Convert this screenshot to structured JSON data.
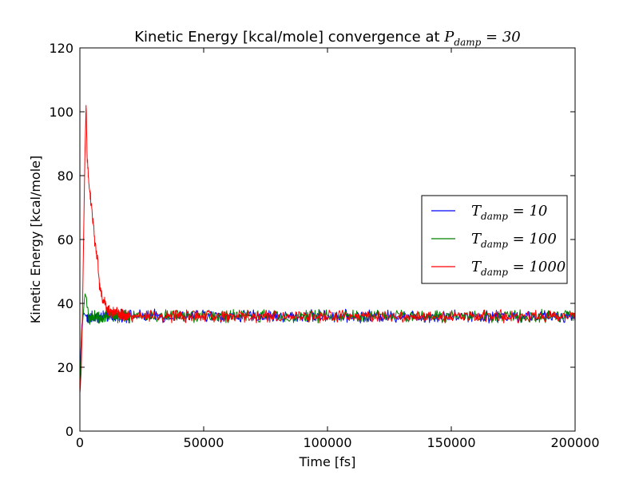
{
  "chart_data": {
    "type": "line",
    "title": "Kinetic Energy [kcal/mole] convergence at ",
    "title_math": {
      "base": "P",
      "sub": "damp",
      "rest": " = 30"
    },
    "xlabel": "Time [fs]",
    "ylabel": "Kinetic Energy [kcal/mole]",
    "xlim": [
      0,
      200000
    ],
    "ylim": [
      0,
      120
    ],
    "xticks": [
      0,
      50000,
      100000,
      150000,
      200000
    ],
    "yticks": [
      0,
      20,
      40,
      60,
      80,
      100,
      120
    ],
    "xtick_labels": [
      "0",
      "50000",
      "100000",
      "150000",
      "200000"
    ],
    "ytick_labels": [
      "0",
      "20",
      "40",
      "60",
      "80",
      "100",
      "120"
    ],
    "grid": false,
    "legend_position": "center-right",
    "equilibrium_mean": 36,
    "noise_amplitude": 1.5,
    "series": [
      {
        "name": "T_damp = 10",
        "label": {
          "base": "T",
          "sub": "damp",
          "rest": " = 10"
        },
        "color": "#0000ff",
        "x": [
          0,
          400,
          800,
          1200,
          1600,
          2000,
          3000,
          4000,
          5000,
          6000,
          8000,
          10000,
          15000,
          200000
        ],
        "y": [
          12,
          25,
          33,
          36,
          37,
          36.5,
          35.5,
          35,
          35.5,
          36,
          35.5,
          36,
          36,
          36
        ]
      },
      {
        "name": "T_damp = 100",
        "label": {
          "base": "T",
          "sub": "damp",
          "rest": " = 100"
        },
        "color": "#008000",
        "x": [
          0,
          300,
          600,
          900,
          1200,
          1500,
          1800,
          2100,
          2500,
          3000,
          3500,
          4000,
          5000,
          6000,
          8000,
          10000,
          15000,
          200000
        ],
        "y": [
          12,
          20,
          28,
          32,
          35,
          38,
          41,
          43,
          42,
          38,
          36,
          35,
          35.5,
          36,
          35.5,
          36,
          36,
          36
        ]
      },
      {
        "name": "T_damp = 1000",
        "label": {
          "base": "T",
          "sub": "damp",
          "rest": " = 1000"
        },
        "color": "#ff0000",
        "x": [
          0,
          500,
          1000,
          1500,
          2000,
          2500,
          3000,
          3500,
          4000,
          5000,
          6000,
          7000,
          8000,
          9000,
          10000,
          11000,
          12000,
          14000,
          17000,
          20000,
          30000,
          200000
        ],
        "y": [
          12,
          18,
          35,
          60,
          85,
          102,
          85,
          78,
          75,
          68,
          60,
          55,
          45,
          42,
          40,
          38,
          37.5,
          37,
          36.5,
          36,
          36,
          36
        ]
      }
    ]
  }
}
